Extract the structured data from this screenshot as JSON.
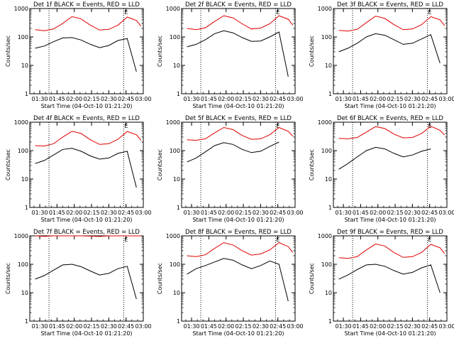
{
  "chart_data": {
    "type": "line",
    "panel_titles": [
      "Det 1f BLACK = Events, RED = LLD",
      "Det 2f BLACK = Events, RED = LLD",
      "Det 3f BLACK = Events, RED = LLD",
      "Det 4f BLACK = Events, RED = LLD",
      "Det 5f BLACK = Events, RED = LLD",
      "Det 6f BLACK = Events, RED = LLD",
      "Det 7f BLACK = Events, RED = LLD",
      "Det 8f BLACK = Events, RED = LLD",
      "Det 9f BLACK = Events, RED = LLD"
    ],
    "xlabel": "Start Time (04-Oct-10 01:21:20)",
    "ylabel": "Counts/sec",
    "y_scale": "log",
    "ylim": [
      1,
      1000
    ],
    "y_ticks": [
      "1",
      "10",
      "100",
      "1000"
    ],
    "xlim": [
      "01:21:20",
      "03:00:00"
    ],
    "x_tick_labels": [
      "01:30",
      "01:45",
      "02:00",
      "02:15",
      "02:30",
      "02:45",
      "03:00"
    ],
    "x_tick_minutes": [
      90,
      105,
      120,
      135,
      150,
      165,
      180
    ],
    "markers": [
      {
        "label": "",
        "time": "01:38:00"
      },
      {
        "label": "E",
        "time": "02:43:00"
      }
    ],
    "series_names": [
      "Events",
      "LLD"
    ],
    "series_colors": {
      "Events": "#000000",
      "LLD": "#e00000"
    },
    "series_time_min": [
      86,
      94,
      102,
      110,
      118,
      126,
      134,
      142,
      150,
      158,
      166,
      174,
      178
    ],
    "panels": [
      {
        "events": [
          40,
          48,
          68,
          92,
          95,
          78,
          55,
          42,
          50,
          75,
          88,
          6,
          null
        ],
        "lld": [
          180,
          165,
          190,
          300,
          520,
          430,
          260,
          175,
          185,
          260,
          500,
          380,
          240
        ]
      },
      {
        "events": [
          45,
          55,
          80,
          130,
          165,
          140,
          95,
          70,
          72,
          100,
          150,
          4,
          null
        ],
        "lld": [
          200,
          180,
          210,
          350,
          560,
          470,
          290,
          190,
          205,
          290,
          560,
          420,
          260
        ]
      },
      {
        "events": [
          30,
          40,
          60,
          100,
          130,
          115,
          80,
          55,
          60,
          85,
          120,
          12,
          null
        ],
        "lld": [
          170,
          160,
          185,
          320,
          540,
          450,
          270,
          180,
          190,
          270,
          520,
          400,
          250
        ]
      },
      {
        "events": [
          35,
          45,
          70,
          110,
          120,
          95,
          65,
          50,
          55,
          80,
          95,
          5,
          null
        ],
        "lld": [
          150,
          145,
          175,
          300,
          480,
          400,
          240,
          165,
          175,
          250,
          470,
          360,
          230
        ]
      },
      {
        "events": [
          40,
          55,
          90,
          150,
          190,
          165,
          110,
          85,
          95,
          140,
          200,
          null,
          null
        ],
        "lld": [
          240,
          230,
          260,
          420,
          650,
          550,
          340,
          250,
          260,
          360,
          650,
          480,
          320
        ]
      },
      {
        "events": [
          22,
          35,
          60,
          100,
          130,
          115,
          80,
          60,
          70,
          95,
          115,
          null,
          null
        ],
        "lld": [
          270,
          260,
          290,
          450,
          700,
          600,
          380,
          280,
          290,
          400,
          720,
          520,
          350
        ]
      },
      {
        "events": [
          30,
          40,
          62,
          95,
          100,
          82,
          58,
          42,
          48,
          70,
          85,
          6,
          null
        ],
        "lld": [
          1000,
          960,
          1000,
          1000,
          1000,
          1000,
          980,
          950,
          1000,
          1000,
          1000,
          1000,
          1000
        ]
      },
      {
        "events": [
          45,
          70,
          90,
          120,
          160,
          140,
          95,
          70,
          90,
          130,
          100,
          5,
          null
        ],
        "lld": [
          200,
          185,
          215,
          360,
          580,
          480,
          300,
          210,
          230,
          320,
          580,
          420,
          260
        ]
      },
      {
        "events": [
          30,
          42,
          65,
          95,
          100,
          85,
          60,
          45,
          52,
          75,
          95,
          10,
          null
        ],
        "lld": [
          170,
          160,
          185,
          320,
          520,
          440,
          260,
          175,
          185,
          260,
          500,
          380,
          240
        ]
      }
    ]
  }
}
